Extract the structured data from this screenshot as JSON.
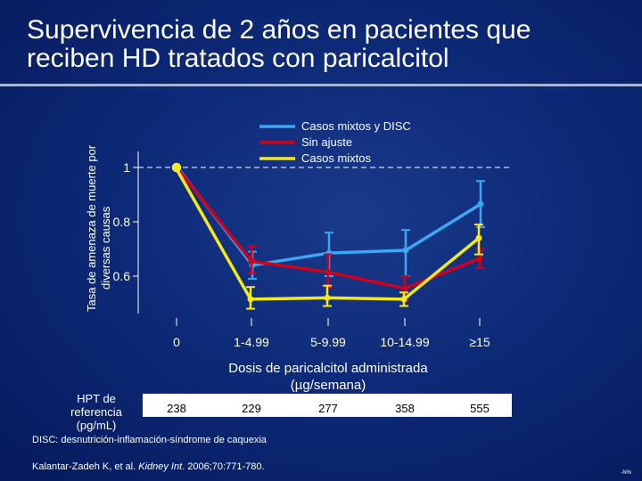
{
  "slide": {
    "title_line1": "Supervivencia de 2 años en pacientes que",
    "title_line2": "reciben HD tratados con paricalcitol"
  },
  "chart_data": {
    "type": "line",
    "ylabel_line1": "Tasa de amenaza de muerte por",
    "ylabel_line2": "diversas causas",
    "xlabel_line1": "Dosis de paricalcitol administrada",
    "xlabel_line2": "(µg/semana)",
    "categories": [
      "0",
      "1-4.99",
      "5-9.99",
      "10-14.99",
      "≥15"
    ],
    "yticks": [
      {
        "value": 1.0,
        "label": "1"
      },
      {
        "value": 0.8,
        "label": "0.8"
      },
      {
        "value": 0.6,
        "label": "0.6"
      }
    ],
    "ylim": [
      0.5,
      1.04
    ],
    "reference_line": 1.0,
    "legend": {
      "position": "top-right"
    },
    "series": [
      {
        "name": "Casos mixtos y DISC",
        "color": "#3ba7f5",
        "values": [
          1.0,
          0.64,
          0.685,
          0.695,
          0.865
        ],
        "err_low": [
          1.0,
          0.59,
          0.6,
          0.6,
          0.78
        ],
        "err_high": [
          1.0,
          0.69,
          0.76,
          0.77,
          0.95
        ]
      },
      {
        "name": "Sin ajuste",
        "color": "#d0021b",
        "values": [
          1.0,
          0.655,
          0.615,
          0.555,
          0.665
        ],
        "err_low": [
          1.0,
          0.61,
          0.56,
          0.51,
          0.63
        ],
        "err_high": [
          1.0,
          0.71,
          0.68,
          0.6,
          0.7
        ]
      },
      {
        "name": "Casos mixtos",
        "color": "#f5ea14",
        "values": [
          1.0,
          0.515,
          0.52,
          0.515,
          0.74
        ],
        "err_low": [
          1.0,
          0.48,
          0.49,
          0.49,
          0.68
        ],
        "err_high": [
          1.0,
          0.56,
          0.565,
          0.54,
          0.79
        ]
      }
    ]
  },
  "hpt": {
    "label": "HPT de referencia (pg/mL)",
    "values": [
      "238",
      "229",
      "277",
      "358",
      "555"
    ]
  },
  "footnote": "DISC: desnutrición-inflamación-síndrome de caquexia",
  "citation": {
    "authors": "Kalantar-Zadeh K, et al. ",
    "journal": "Kidney Int",
    "details": ". 2006;70:771-780."
  },
  "slide_tag": "-N%"
}
